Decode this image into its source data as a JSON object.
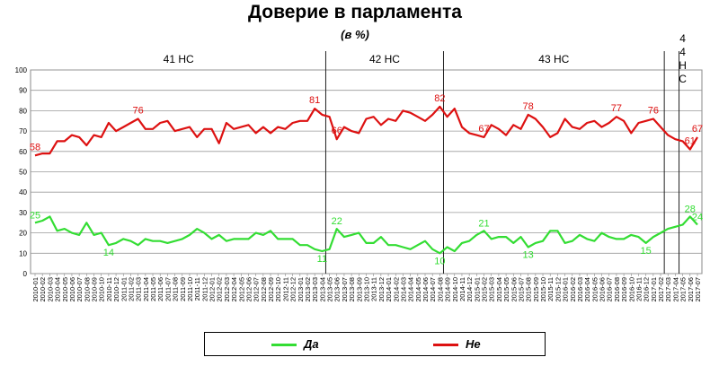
{
  "chart_data": {
    "type": "line",
    "title": "Доверие в парламента",
    "subtitle": "(в %)",
    "ylim": [
      0,
      100
    ],
    "yticks": [
      0,
      10,
      20,
      30,
      40,
      50,
      60,
      70,
      80,
      90,
      100
    ],
    "grid": true,
    "legend_position": "bottom",
    "x": [
      "2010-01",
      "2010-02",
      "2010-03",
      "2010-04",
      "2010-05",
      "2010-06",
      "2010-07",
      "2010-08",
      "2010-09",
      "2010-10",
      "2010-11",
      "2010-12",
      "2011-01",
      "2011-02",
      "2011-03",
      "2011-04",
      "2011-05",
      "2011-06",
      "2011-07",
      "2011-08",
      "2011-09",
      "2011-10",
      "2011-11",
      "2011-12",
      "2012-01",
      "2012-02",
      "2012-03",
      "2012-04",
      "2012-05",
      "2012-06",
      "2012-07",
      "2012-08",
      "2012-09",
      "2012-10",
      "2012-11",
      "2012-12",
      "2013-01",
      "2013-02",
      "2013-03",
      "2013-04",
      "2013-05",
      "2013-06",
      "2013-07",
      "2013-08",
      "2013-09",
      "2013-10",
      "2013-11",
      "2013-12",
      "2014-01",
      "2014-02",
      "2014-03",
      "2014-04",
      "2014-05",
      "2014-06",
      "2014-07",
      "2014-08",
      "2014-09",
      "2014-10",
      "2014-11",
      "2014-12",
      "2015-01",
      "2015-02",
      "2015-03",
      "2015-04",
      "2015-05",
      "2015-06",
      "2015-07",
      "2015-08",
      "2015-09",
      "2015-10",
      "2015-11",
      "2015-12",
      "2016-01",
      "2016-02",
      "2016-03",
      "2016-04",
      "2016-05",
      "2016-06",
      "2016-07",
      "2016-08",
      "2016-09",
      "2016-10",
      "2016-11",
      "2016-12",
      "2017-01",
      "2017-02",
      "2017-03",
      "2017-04",
      "2017-05",
      "2017-06",
      "2017-07"
    ],
    "series": [
      {
        "name": "Да",
        "color": "#33dd33",
        "values": [
          25,
          26,
          28,
          21,
          22,
          20,
          19,
          25,
          19,
          20,
          14,
          15,
          17,
          16,
          14,
          17,
          16,
          16,
          15,
          16,
          17,
          19,
          22,
          20,
          17,
          19,
          16,
          17,
          17,
          17,
          20,
          19,
          21,
          17,
          17,
          17,
          14,
          14,
          12,
          11,
          12,
          22,
          18,
          19,
          20,
          15,
          15,
          18,
          14,
          14,
          13,
          12,
          14,
          16,
          12,
          10,
          13,
          11,
          15,
          16,
          19,
          21,
          17,
          18,
          18,
          15,
          18,
          13,
          15,
          16,
          21,
          21,
          15,
          16,
          19,
          17,
          16,
          20,
          18,
          17,
          17,
          19,
          18,
          15,
          18,
          20,
          22,
          23,
          24,
          28,
          24
        ],
        "labels": [
          {
            "index": 0,
            "text": "25"
          },
          {
            "index": 10,
            "text": "14"
          },
          {
            "index": 39,
            "text": "11"
          },
          {
            "index": 41,
            "text": "22"
          },
          {
            "index": 55,
            "text": "10"
          },
          {
            "index": 61,
            "text": "21"
          },
          {
            "index": 67,
            "text": "13"
          },
          {
            "index": 83,
            "text": "15"
          },
          {
            "index": 89,
            "text": "28"
          },
          {
            "index": 90,
            "text": "24"
          }
        ]
      },
      {
        "name": "Не",
        "color": "#dd1111",
        "values": [
          58,
          59,
          59,
          65,
          65,
          68,
          67,
          63,
          68,
          67,
          74,
          70,
          72,
          74,
          76,
          71,
          71,
          74,
          75,
          70,
          71,
          72,
          67,
          71,
          71,
          64,
          74,
          71,
          72,
          73,
          69,
          72,
          69,
          72,
          71,
          74,
          75,
          75,
          81,
          78,
          77,
          66,
          72,
          70,
          69,
          76,
          77,
          73,
          76,
          75,
          80,
          79,
          77,
          75,
          78,
          82,
          77,
          81,
          72,
          69,
          68,
          67,
          73,
          71,
          68,
          73,
          71,
          78,
          76,
          72,
          67,
          69,
          76,
          72,
          71,
          74,
          75,
          72,
          74,
          77,
          75,
          69,
          74,
          75,
          76,
          72,
          68,
          66,
          65,
          61,
          67
        ],
        "labels": [
          {
            "index": 0,
            "text": "58"
          },
          {
            "index": 14,
            "text": "76"
          },
          {
            "index": 38,
            "text": "81"
          },
          {
            "index": 41,
            "text": "66"
          },
          {
            "index": 55,
            "text": "82"
          },
          {
            "index": 61,
            "text": "67"
          },
          {
            "index": 67,
            "text": "78"
          },
          {
            "index": 79,
            "text": "77"
          },
          {
            "index": 84,
            "text": "76"
          },
          {
            "index": 89,
            "text": "61"
          },
          {
            "index": 90,
            "text": "67"
          }
        ]
      }
    ],
    "periods": [
      {
        "label": "41 НС",
        "from": "2010-01",
        "to": "2013-04"
      },
      {
        "label": "42 НС",
        "from": "2013-05",
        "to": "2014-08"
      },
      {
        "label": "43 НС",
        "from": "2014-09",
        "to": "2017-02"
      },
      {
        "label": "44 НС",
        "from": "2017-03",
        "to": "2017-07"
      }
    ],
    "divider_after": [
      "2013-04",
      "2014-08",
      "2017-02",
      "2017-04"
    ]
  },
  "legend": {
    "da": "Да",
    "ne": "Не"
  }
}
